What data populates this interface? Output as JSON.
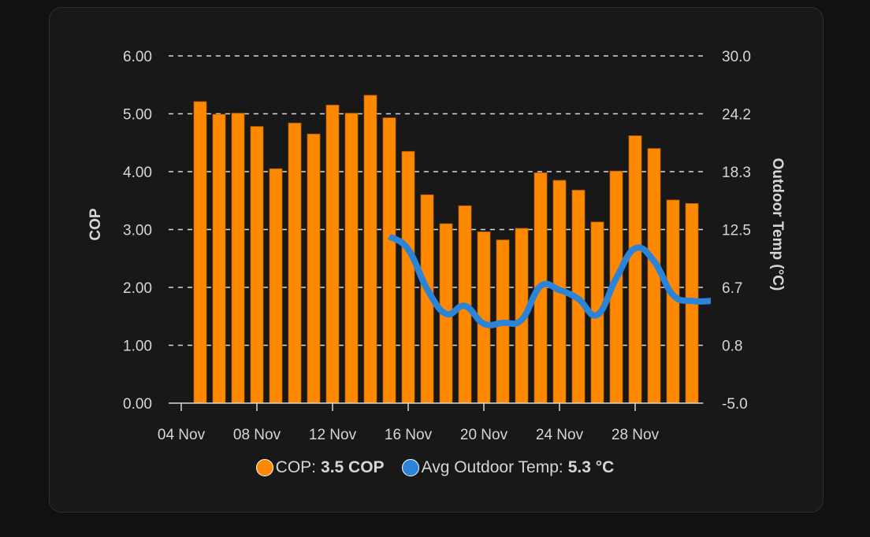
{
  "colors": {
    "cop": "#FF8800",
    "cop_outline": "#b35f00",
    "temp": "#2B84D8",
    "grid": "#d8d8d8",
    "text": "#d6d6d6"
  },
  "legend": [
    {
      "name": "COP",
      "label": "COP:",
      "value": "3.5 COP",
      "color": "#FF8800"
    },
    {
      "name": "Avg Outdoor Temp",
      "label": "Avg Outdoor Temp:",
      "value": "5.3 °C",
      "color": "#2B84D8"
    }
  ],
  "chart_data": {
    "type": "bar",
    "title": "",
    "xlabel": "",
    "ylabel": "COP",
    "y2label": "Outdoor Temp (°C)",
    "grid": true,
    "legend_position": "bottom",
    "x_ticks": [
      "04 Nov",
      "08 Nov",
      "12 Nov",
      "16 Nov",
      "20 Nov",
      "24 Nov",
      "28 Nov"
    ],
    "x_tick_days": [
      4,
      8,
      12,
      16,
      20,
      24,
      28
    ],
    "xlim_days": [
      3.33,
      31.6
    ],
    "ylim": [
      0,
      6
    ],
    "y_ticks": [
      "0.00",
      "1.00",
      "2.00",
      "3.00",
      "4.00",
      "5.00",
      "6.00"
    ],
    "y2lim": [
      -5,
      30
    ],
    "y2_ticks": [
      "-5.0",
      "0.8",
      "6.7",
      "12.5",
      "18.3",
      "24.2",
      "30.0"
    ],
    "series": [
      {
        "name": "COP",
        "type": "bar",
        "axis": "left",
        "x_days": [
          5,
          6,
          7,
          8,
          9,
          10,
          11,
          12,
          13,
          14,
          15,
          16,
          17,
          18,
          19,
          20,
          21,
          22,
          23,
          24,
          25,
          26,
          27,
          28,
          29,
          30,
          31
        ],
        "x_labels": [
          "05 Nov",
          "06 Nov",
          "07 Nov",
          "08 Nov",
          "09 Nov",
          "10 Nov",
          "11 Nov",
          "12 Nov",
          "13 Nov",
          "14 Nov",
          "15 Nov",
          "16 Nov",
          "17 Nov",
          "18 Nov",
          "19 Nov",
          "20 Nov",
          "21 Nov",
          "22 Nov",
          "23 Nov",
          "24 Nov",
          "25 Nov",
          "26 Nov",
          "27 Nov",
          "28 Nov",
          "29 Nov",
          "30 Nov",
          "01 Dec"
        ],
        "values": [
          5.21,
          4.99,
          5.01,
          4.78,
          4.05,
          4.84,
          4.65,
          5.15,
          5.01,
          5.32,
          4.93,
          4.35,
          3.6,
          3.1,
          3.41,
          2.96,
          2.82,
          3.02,
          3.98,
          3.85,
          3.68,
          3.13,
          4.01,
          4.62,
          4.4,
          3.51,
          3.45
        ]
      },
      {
        "name": "Avg Outdoor Temp",
        "type": "line",
        "axis": "right",
        "x_days": [
          15,
          16,
          17,
          18,
          19,
          20,
          21,
          22,
          23,
          24,
          25,
          26,
          27,
          28,
          29,
          30,
          31,
          32
        ],
        "x_labels": [
          "15 Nov",
          "16 Nov",
          "17 Nov",
          "18 Nov",
          "19 Nov",
          "20 Nov",
          "21 Nov",
          "22 Nov",
          "23 Nov",
          "24 Nov",
          "25 Nov",
          "26 Nov",
          "27 Nov",
          "28 Nov",
          "29 Nov",
          "30 Nov",
          "01 Dec",
          "02 Dec"
        ],
        "values": [
          11.8,
          10.5,
          6.5,
          4.0,
          4.8,
          3.0,
          3.1,
          3.4,
          6.8,
          6.4,
          5.5,
          3.9,
          7.6,
          10.6,
          9.3,
          5.9,
          5.3,
          5.3
        ]
      }
    ]
  }
}
